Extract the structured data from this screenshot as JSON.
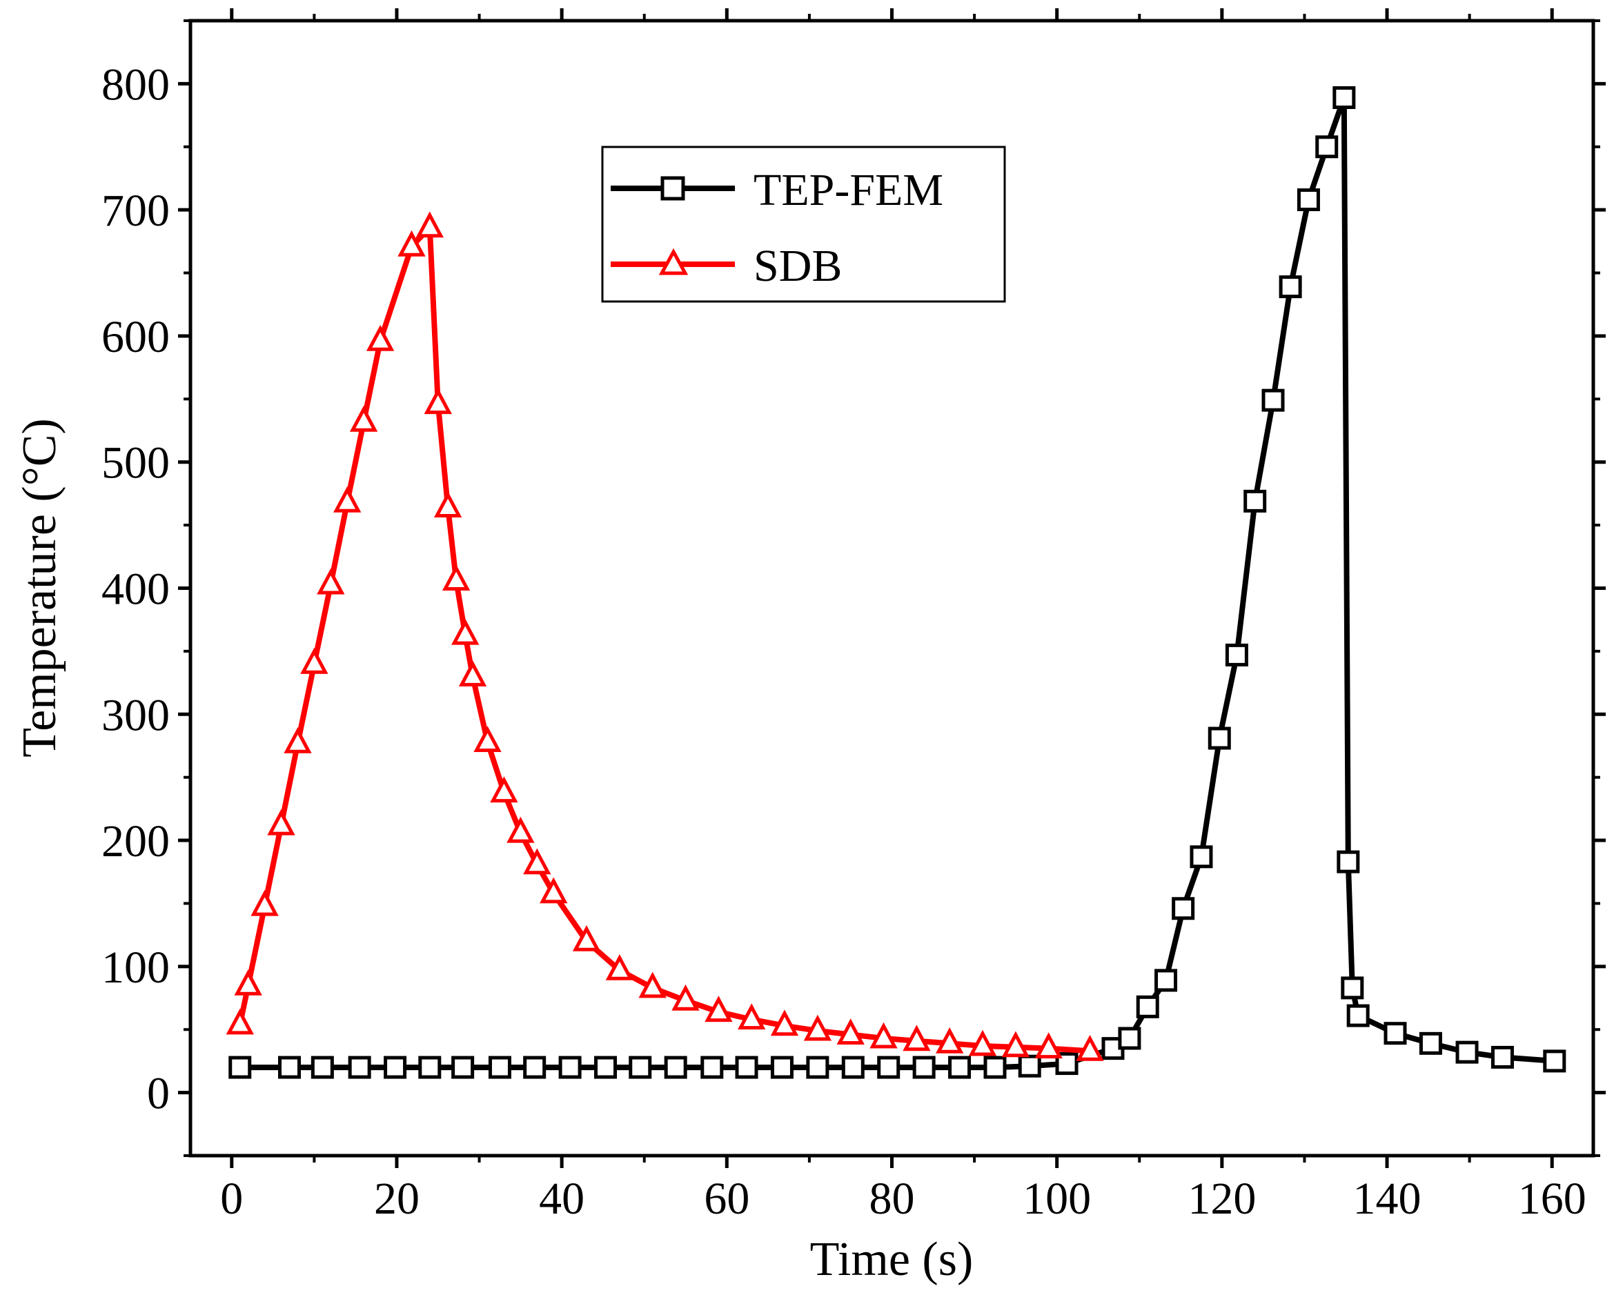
{
  "chart_data": {
    "type": "line",
    "xlabel": "Time (s)",
    "ylabel": "Temperature (°C)",
    "xlim": [
      -5,
      165
    ],
    "ylim": [
      -50,
      850
    ],
    "xticks": [
      0,
      20,
      40,
      60,
      80,
      100,
      120,
      140,
      160
    ],
    "yticks": [
      0,
      100,
      200,
      300,
      400,
      500,
      600,
      700,
      800
    ],
    "x_tick_labels": [
      "0",
      "20",
      "40",
      "60",
      "80",
      "100",
      "120",
      "140",
      "160"
    ],
    "y_tick_labels": [
      "0",
      "100",
      "200",
      "300",
      "400",
      "500",
      "600",
      "700",
      "800"
    ],
    "grid": false,
    "legend_position": "top-center",
    "series": [
      {
        "name": "TEP-FEM",
        "color": "#000000",
        "marker": "square",
        "points": [
          [
            1,
            20
          ],
          [
            7,
            20
          ],
          [
            11,
            20
          ],
          [
            15.5,
            20
          ],
          [
            19.8,
            20
          ],
          [
            24,
            20
          ],
          [
            28,
            20
          ],
          [
            32.5,
            20
          ],
          [
            36.7,
            20
          ],
          [
            41,
            20
          ],
          [
            45.3,
            20
          ],
          [
            49.5,
            20
          ],
          [
            53.8,
            20
          ],
          [
            58.2,
            20
          ],
          [
            62.4,
            20
          ],
          [
            66.7,
            20
          ],
          [
            71,
            20
          ],
          [
            75.3,
            20
          ],
          [
            79.6,
            20
          ],
          [
            83.9,
            20
          ],
          [
            88.2,
            20
          ],
          [
            92.5,
            20
          ],
          [
            96.7,
            21
          ],
          [
            101.2,
            23
          ],
          [
            106.8,
            35
          ],
          [
            108.8,
            43
          ],
          [
            111,
            68
          ],
          [
            113.2,
            89
          ],
          [
            115.3,
            146
          ],
          [
            117.5,
            187
          ],
          [
            119.7,
            281
          ],
          [
            121.8,
            347
          ],
          [
            124,
            469
          ],
          [
            126.2,
            549
          ],
          [
            128.3,
            639
          ],
          [
            130.5,
            708
          ],
          [
            132.7,
            750
          ],
          [
            134.8,
            789
          ],
          [
            135.3,
            183
          ],
          [
            135.8,
            83
          ],
          [
            136.5,
            61
          ],
          [
            141,
            47
          ],
          [
            145.3,
            39
          ],
          [
            149.7,
            32
          ],
          [
            154,
            28
          ],
          [
            160.3,
            25
          ]
        ]
      },
      {
        "name": "SDB",
        "color": "#ff0000",
        "marker": "triangle",
        "points": [
          [
            1,
            54
          ],
          [
            2,
            85
          ],
          [
            4,
            148
          ],
          [
            6,
            212
          ],
          [
            8,
            277
          ],
          [
            10,
            340
          ],
          [
            12,
            403
          ],
          [
            14,
            468
          ],
          [
            16,
            532
          ],
          [
            18,
            596
          ],
          [
            21.8,
            671
          ],
          [
            24,
            686
          ],
          [
            25,
            546
          ],
          [
            26.2,
            464
          ],
          [
            27.2,
            406
          ],
          [
            28.3,
            363
          ],
          [
            29.2,
            330
          ],
          [
            31,
            278
          ],
          [
            33,
            238
          ],
          [
            35,
            206
          ],
          [
            37,
            181
          ],
          [
            39,
            158
          ],
          [
            43,
            120
          ],
          [
            47,
            97
          ],
          [
            51,
            83
          ],
          [
            55,
            73
          ],
          [
            59,
            64
          ],
          [
            63,
            58
          ],
          [
            67,
            53
          ],
          [
            71,
            49
          ],
          [
            75,
            46
          ],
          [
            79,
            43
          ],
          [
            83,
            41
          ],
          [
            87,
            39
          ],
          [
            91,
            37
          ],
          [
            95,
            36
          ],
          [
            99,
            35
          ],
          [
            104,
            33
          ]
        ]
      }
    ]
  }
}
